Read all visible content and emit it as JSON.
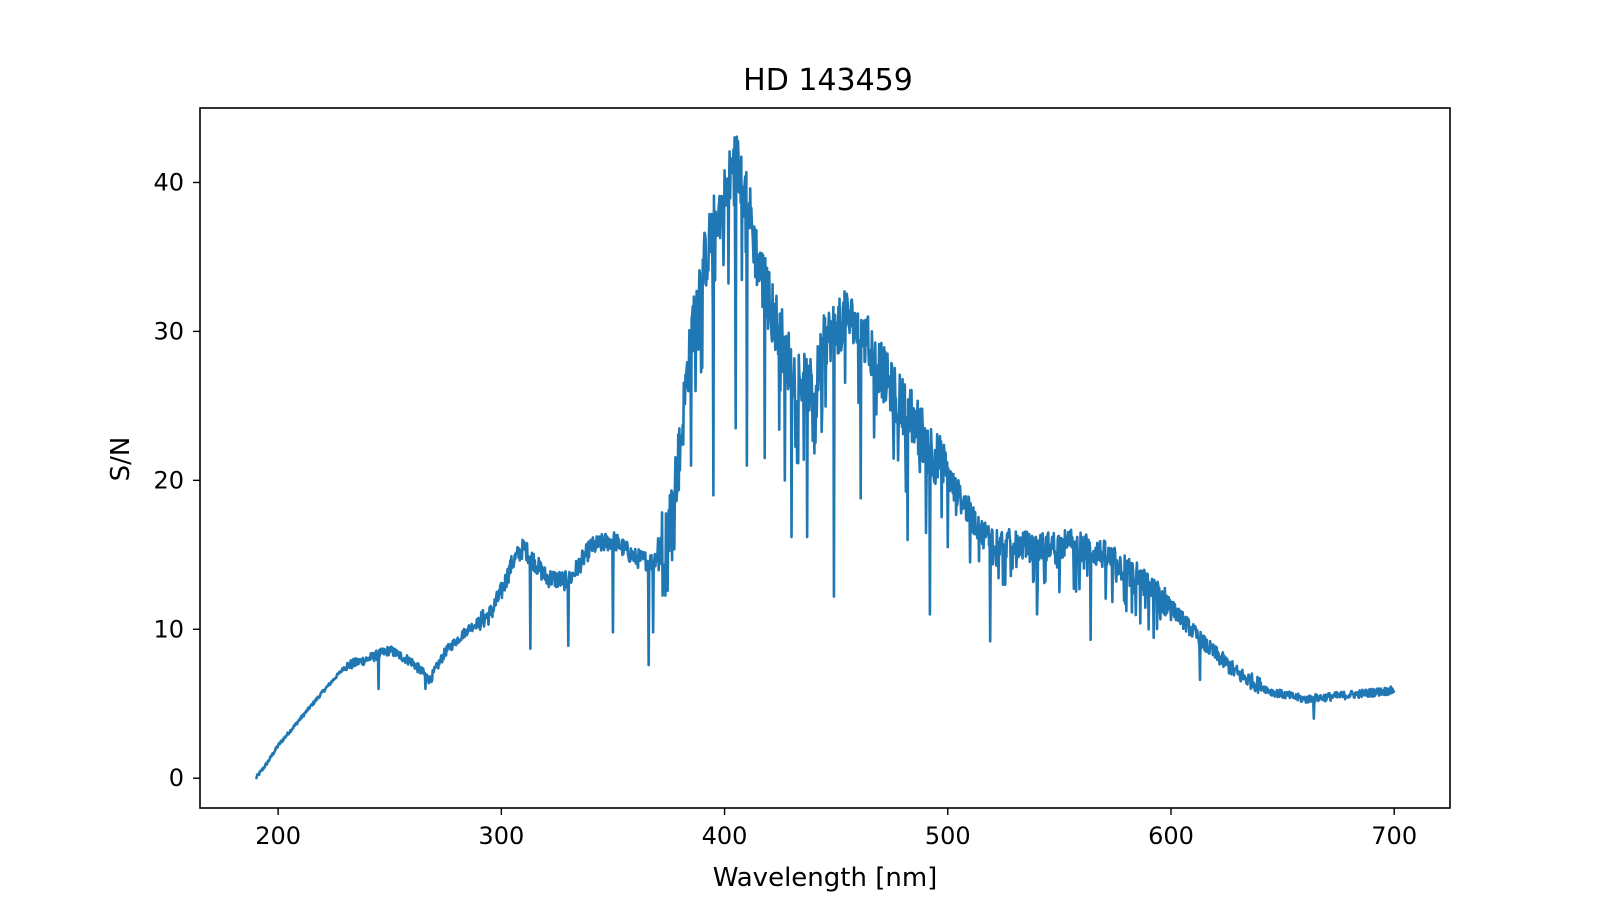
{
  "chart_data": {
    "type": "line",
    "title": "HD 143459",
    "xlabel": "Wavelength [nm]",
    "ylabel": "S/N",
    "xlim": [
      165,
      725
    ],
    "ylim": [
      -2,
      45
    ],
    "xticks": [
      200,
      300,
      400,
      500,
      600,
      700
    ],
    "yticks": [
      0,
      10,
      20,
      30,
      40
    ],
    "grid": false,
    "series": [
      {
        "color": "#1f77b4",
        "envelope": {
          "x": [
            190,
            195,
            200,
            210,
            220,
            230,
            240,
            250,
            260,
            268,
            275,
            285,
            295,
            300,
            305,
            310,
            320,
            330,
            340,
            350,
            360,
            368,
            375,
            380,
            385,
            390,
            395,
            400,
            405,
            410,
            415,
            420,
            430,
            440,
            445,
            455,
            465,
            475,
            485,
            495,
            505,
            515,
            525,
            540,
            555,
            570,
            585,
            600,
            615,
            630,
            645,
            660,
            680,
            700
          ],
          "y": [
            0,
            1.0,
            2.2,
            4.0,
            5.8,
            7.5,
            8.0,
            8.6,
            7.8,
            6.6,
            8.5,
            10.0,
            11.0,
            12.5,
            14.5,
            15.5,
            13.5,
            13.2,
            15.5,
            16.0,
            14.8,
            14.5,
            17.0,
            22.0,
            30.0,
            34.0,
            37.0,
            39.0,
            41.5,
            39.0,
            34.5,
            32.0,
            27.5,
            26.0,
            29.5,
            31.0,
            29.0,
            26.0,
            24.0,
            21.5,
            19.0,
            16.5,
            15.8,
            15.5,
            15.8,
            15.0,
            13.5,
            11.5,
            9.0,
            7.0,
            5.8,
            5.3,
            5.6,
            5.9
          ]
        },
        "noise": [
          {
            "from": 190,
            "to": 230,
            "amplitude": 0.2
          },
          {
            "from": 230,
            "to": 290,
            "amplitude": 0.6
          },
          {
            "from": 290,
            "to": 370,
            "amplitude": 1.2
          },
          {
            "from": 370,
            "to": 430,
            "amplitude": 4.0
          },
          {
            "from": 430,
            "to": 500,
            "amplitude": 3.5
          },
          {
            "from": 500,
            "to": 600,
            "amplitude": 1.8
          },
          {
            "from": 600,
            "to": 640,
            "amplitude": 1.0
          },
          {
            "from": 640,
            "to": 700,
            "amplitude": 0.5
          }
        ],
        "absorption_dips": [
          {
            "x": 245,
            "y": 6.0
          },
          {
            "x": 266,
            "y": 6.0
          },
          {
            "x": 313,
            "y": 8.7
          },
          {
            "x": 330,
            "y": 8.9
          },
          {
            "x": 350,
            "y": 9.8
          },
          {
            "x": 366,
            "y": 7.6
          },
          {
            "x": 368,
            "y": 9.8
          },
          {
            "x": 385,
            "y": 21.0
          },
          {
            "x": 395,
            "y": 19.0
          },
          {
            "x": 405,
            "y": 23.5
          },
          {
            "x": 410,
            "y": 21.0
          },
          {
            "x": 418,
            "y": 21.5
          },
          {
            "x": 427,
            "y": 20.0
          },
          {
            "x": 430,
            "y": 16.2
          },
          {
            "x": 437,
            "y": 16.2
          },
          {
            "x": 449,
            "y": 12.2
          },
          {
            "x": 461,
            "y": 18.8
          },
          {
            "x": 482,
            "y": 16.0
          },
          {
            "x": 492,
            "y": 11.0
          },
          {
            "x": 510,
            "y": 14.5
          },
          {
            "x": 519,
            "y": 9.2
          },
          {
            "x": 540,
            "y": 11.0
          },
          {
            "x": 564,
            "y": 9.3
          },
          {
            "x": 590,
            "y": 10.0
          },
          {
            "x": 613,
            "y": 6.6
          },
          {
            "x": 664,
            "y": 4.0
          }
        ]
      }
    ]
  }
}
